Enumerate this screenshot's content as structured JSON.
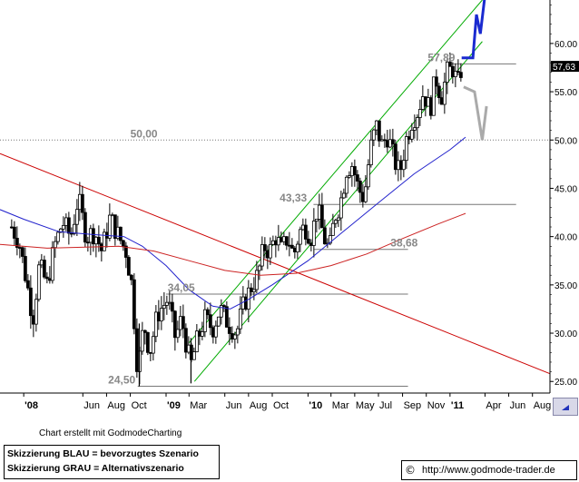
{
  "chart_data": {
    "type": "candlestick",
    "title": "",
    "xlabel": "",
    "ylabel": "",
    "ylim": [
      23.8,
      64.5
    ],
    "xlim": [
      "2007-11-01",
      "2011-09-15"
    ],
    "y_axis_position": "right",
    "y_ticks": [
      "25.00",
      "30.00",
      "35.00",
      "40.00",
      "45.00",
      "50.00",
      "55.00",
      "60.00"
    ],
    "x_ticks": [
      {
        "label": "'08",
        "date": "2008-01-01"
      },
      {
        "label": "Jun",
        "date": "2008-06-01"
      },
      {
        "label": "Aug",
        "date": "2008-08-01"
      },
      {
        "label": "Oct",
        "date": "2008-10-01"
      },
      {
        "label": "'09",
        "date": "2009-01-01"
      },
      {
        "label": "Mar",
        "date": "2009-03-01"
      },
      {
        "label": "Jun",
        "date": "2009-06-01"
      },
      {
        "label": "Aug",
        "date": "2009-08-01"
      },
      {
        "label": "Oct",
        "date": "2009-10-01"
      },
      {
        "label": "'10",
        "date": "2010-01-01"
      },
      {
        "label": "Mar",
        "date": "2010-03-01"
      },
      {
        "label": "May",
        "date": "2010-05-01"
      },
      {
        "label": "Jul",
        "date": "2010-07-01"
      },
      {
        "label": "Sep",
        "date": "2010-09-01"
      },
      {
        "label": "Nov",
        "date": "2010-11-01"
      },
      {
        "label": "'11",
        "date": "2011-01-01"
      },
      {
        "label": "Apr",
        "date": "2011-04-01"
      },
      {
        "label": "Jun",
        "date": "2011-06-01"
      },
      {
        "label": "Aug",
        "date": "2011-08-01"
      }
    ],
    "price_path": [
      [
        "2007-12-01",
        41.0
      ],
      [
        "2007-12-20",
        39.5
      ],
      [
        "2008-01-10",
        35.0
      ],
      [
        "2008-01-25",
        31.5
      ],
      [
        "2008-02-10",
        37.0
      ],
      [
        "2008-03-01",
        35.0
      ],
      [
        "2008-03-20",
        39.0
      ],
      [
        "2008-04-10",
        41.5
      ],
      [
        "2008-05-01",
        40.0
      ],
      [
        "2008-05-20",
        44.0
      ],
      [
        "2008-06-10",
        40.0
      ],
      [
        "2008-07-01",
        40.5
      ],
      [
        "2008-07-20",
        38.5
      ],
      [
        "2008-08-10",
        42.0
      ],
      [
        "2008-09-01",
        40.0
      ],
      [
        "2008-09-20",
        38.5
      ],
      [
        "2008-10-05",
        35.0
      ],
      [
        "2008-10-20",
        26.0
      ],
      [
        "2008-11-05",
        31.0
      ],
      [
        "2008-11-20",
        28.0
      ],
      [
        "2008-12-10",
        32.0
      ],
      [
        "2009-01-05",
        33.5
      ],
      [
        "2009-01-25",
        29.5
      ],
      [
        "2009-02-10",
        31.5
      ],
      [
        "2009-03-05",
        26.5
      ],
      [
        "2009-03-20",
        29.0
      ],
      [
        "2009-04-10",
        31.5
      ],
      [
        "2009-05-01",
        30.5
      ],
      [
        "2009-05-20",
        32.5
      ],
      [
        "2009-06-10",
        31.0
      ],
      [
        "2009-07-01",
        30.0
      ],
      [
        "2009-07-20",
        33.0
      ],
      [
        "2009-08-10",
        35.0
      ],
      [
        "2009-08-25",
        36.0
      ],
      [
        "2009-09-10",
        39.0
      ],
      [
        "2009-09-25",
        38.5
      ],
      [
        "2009-10-10",
        40.0
      ],
      [
        "2009-10-25",
        38.5
      ],
      [
        "2009-11-10",
        40.0
      ],
      [
        "2009-11-25",
        38.0
      ],
      [
        "2009-12-10",
        40.5
      ],
      [
        "2009-12-25",
        41.0
      ],
      [
        "2010-01-10",
        40.0
      ],
      [
        "2010-01-25",
        43.0
      ],
      [
        "2010-02-10",
        40.0
      ],
      [
        "2010-02-25",
        38.5
      ],
      [
        "2010-03-10",
        42.0
      ],
      [
        "2010-03-25",
        43.5
      ],
      [
        "2010-04-10",
        47.0
      ],
      [
        "2010-04-25",
        47.5
      ],
      [
        "2010-05-10",
        45.0
      ],
      [
        "2010-05-25",
        44.0
      ],
      [
        "2010-06-10",
        49.0
      ],
      [
        "2010-06-25",
        51.5
      ],
      [
        "2010-07-10",
        49.5
      ],
      [
        "2010-07-25",
        50.5
      ],
      [
        "2010-08-10",
        48.0
      ],
      [
        "2010-08-25",
        46.5
      ],
      [
        "2010-09-10",
        50.0
      ],
      [
        "2010-09-25",
        52.0
      ],
      [
        "2010-10-10",
        53.0
      ],
      [
        "2010-10-25",
        55.0
      ],
      [
        "2010-11-10",
        53.0
      ],
      [
        "2010-11-25",
        56.5
      ],
      [
        "2010-12-10",
        54.5
      ],
      [
        "2010-12-25",
        57.0
      ],
      [
        "2011-01-10",
        57.5
      ],
      [
        "2011-01-20",
        55.5
      ],
      [
        "2011-01-31",
        57.63
      ]
    ],
    "last_price": "57,63",
    "series": [
      {
        "name": "",
        "color": "#2222cc",
        "points": [
          [
            "2007-11-01",
            42.8
          ],
          [
            "2008-01-01",
            41.8
          ],
          [
            "2008-04-01",
            40.5
          ],
          [
            "2008-07-01",
            40.2
          ],
          [
            "2008-09-15",
            40.0
          ],
          [
            "2008-11-01",
            39.0
          ],
          [
            "2009-01-01",
            37.0
          ],
          [
            "2009-03-01",
            34.5
          ],
          [
            "2009-05-01",
            32.8
          ],
          [
            "2009-06-15",
            32.5
          ],
          [
            "2009-08-01",
            33.5
          ],
          [
            "2009-10-01",
            35.0
          ],
          [
            "2010-01-01",
            37.5
          ],
          [
            "2010-04-01",
            40.5
          ],
          [
            "2010-07-01",
            43.5
          ],
          [
            "2010-10-01",
            46.5
          ],
          [
            "2011-01-01",
            49.0
          ],
          [
            "2011-02-10",
            50.3
          ]
        ]
      },
      {
        "name": "",
        "color": "#cc2222",
        "points": [
          [
            "2007-11-01",
            39.2
          ],
          [
            "2008-03-01",
            38.8
          ],
          [
            "2008-09-01",
            39.0
          ],
          [
            "2008-12-01",
            38.5
          ],
          [
            "2009-03-01",
            37.5
          ],
          [
            "2009-06-01",
            36.5
          ],
          [
            "2009-09-01",
            36.0
          ],
          [
            "2009-12-01",
            36.2
          ],
          [
            "2010-03-01",
            37.0
          ],
          [
            "2010-06-01",
            38.2
          ],
          [
            "2010-09-01",
            39.8
          ],
          [
            "2010-12-01",
            41.3
          ],
          [
            "2011-02-10",
            42.4
          ]
        ]
      }
    ],
    "lines": [
      {
        "kind": "downtrend",
        "color": "#cc0000",
        "from": [
          "2007-11-01",
          48.6
        ],
        "to": [
          "2011-09-15",
          25.8
        ]
      },
      {
        "kind": "channel-upper",
        "color": "#00aa00",
        "from": [
          "2009-03-01",
          29.0
        ],
        "to": [
          "2011-03-25",
          64.5
        ]
      },
      {
        "kind": "channel-lower",
        "color": "#00aa00",
        "from": [
          "2009-03-15",
          25.0
        ],
        "to": [
          "2011-03-25",
          60.2
        ]
      }
    ],
    "levels": [
      {
        "value": 50.0,
        "label": "50,00",
        "from": "2007-11-01",
        "to": "2011-09-15",
        "style": "dotted"
      },
      {
        "value": 57.89,
        "label": "57,89",
        "from": "2011-01-01",
        "to": "2011-06-20",
        "style": "solid"
      },
      {
        "value": 43.33,
        "label": "43,33",
        "from": "2010-01-15",
        "to": "2011-06-20",
        "style": "solid"
      },
      {
        "value": 38.68,
        "label": "38,68",
        "from": "2010-01-15",
        "to": "2010-09-15",
        "style": "solid"
      },
      {
        "value": 34.05,
        "label": "34,05",
        "from": "2009-01-01",
        "to": "2010-09-15",
        "style": "solid"
      },
      {
        "value": 24.5,
        "label": "24,50",
        "from": "2008-10-20",
        "to": "2010-09-15",
        "style": "solid"
      }
    ],
    "scenarios": [
      {
        "name": "BLAU",
        "color": "#1a2ad0",
        "points": [
          [
            "2011-01-31",
            58.5
          ],
          [
            "2011-03-01",
            58.5
          ],
          [
            "2011-03-10",
            63.0
          ],
          [
            "2011-03-20",
            61.0
          ],
          [
            "2011-04-01",
            65.0
          ]
        ]
      },
      {
        "name": "GRAU",
        "color": "#aaaaaa",
        "points": [
          [
            "2011-02-05",
            55.5
          ],
          [
            "2011-03-05",
            55.0
          ],
          [
            "2011-03-25",
            50.0
          ],
          [
            "2011-04-05",
            53.5
          ]
        ]
      }
    ]
  },
  "footer": {
    "credit": "Chart erstellt mit GodmodeCharting",
    "legend_blue": "Skizzierung BLAU = bevorzugtes Szenario",
    "legend_grey": "Skizzierung GRAU = Alternativszenario",
    "copyright_symbol": "©",
    "url": "http://www.godmode-trader.de"
  },
  "icons": {
    "nav": "arrow-right-icon"
  }
}
